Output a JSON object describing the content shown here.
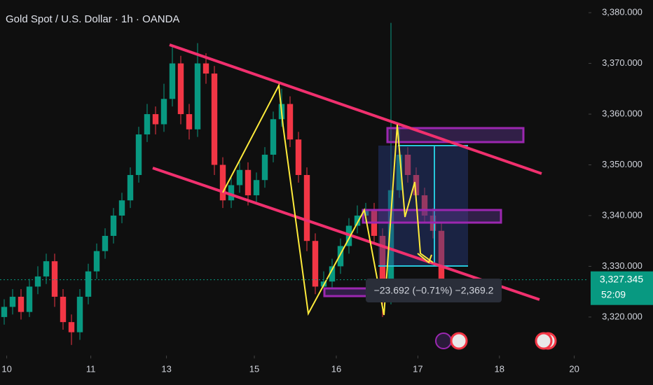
{
  "chart_data": {
    "type": "candlestick",
    "title": "Gold Spot / U.S. Dollar · 1h · OANDA",
    "up_color": "#089981",
    "down_color": "#f23645",
    "candles": [
      [
        3320,
        3323.5,
        3318.5,
        3322
      ],
      [
        3322,
        3325.5,
        3320.5,
        3324
      ],
      [
        3324,
        3325.5,
        3319.5,
        3321
      ],
      [
        3321,
        3327.5,
        3320,
        3326
      ],
      [
        3326,
        3330,
        3324.5,
        3328
      ],
      [
        3328,
        3332.5,
        3326.5,
        3331
      ],
      [
        3331,
        3332.5,
        3322,
        3324
      ],
      [
        3324,
        3325.5,
        3317.5,
        3319
      ],
      [
        3319,
        3320.5,
        3314.5,
        3317
      ],
      [
        3317,
        3325.5,
        3315.5,
        3324
      ],
      [
        3324,
        3330.5,
        3322.5,
        3329
      ],
      [
        3329,
        3334.5,
        3327.5,
        3333
      ],
      [
        3333,
        3337.5,
        3331.5,
        3336
      ],
      [
        3336,
        3341.5,
        3334.5,
        3340
      ],
      [
        3340,
        3344.5,
        3338.5,
        3343
      ],
      [
        3343,
        3349.5,
        3341.5,
        3348
      ],
      [
        3348,
        3357.5,
        3346.5,
        3356
      ],
      [
        3356,
        3362,
        3354.5,
        3360
      ],
      [
        3360,
        3361.5,
        3356,
        3358
      ],
      [
        3358,
        3366,
        3356.5,
        3363
      ],
      [
        3363,
        3373.5,
        3361.5,
        3370
      ],
      [
        3370,
        3371.5,
        3358,
        3360
      ],
      [
        3360,
        3362,
        3355,
        3357
      ],
      [
        3357,
        3374,
        3355.5,
        3370
      ],
      [
        3370,
        3372,
        3366,
        3368
      ],
      [
        3368,
        3369.5,
        3348,
        3350
      ],
      [
        3350,
        3351.5,
        3341.5,
        3343
      ],
      [
        3343,
        3347.5,
        3341.5,
        3346
      ],
      [
        3346,
        3350.5,
        3344.5,
        3349
      ],
      [
        3349,
        3350.5,
        3342,
        3344
      ],
      [
        3344,
        3348.5,
        3342.5,
        3347
      ],
      [
        3347,
        3353.5,
        3345.5,
        3352
      ],
      [
        3352,
        3360.5,
        3350.5,
        3359
      ],
      [
        3359,
        3365,
        3357.5,
        3362
      ],
      [
        3362,
        3363.5,
        3353.5,
        3355
      ],
      [
        3355,
        3356.5,
        3346.5,
        3348
      ],
      [
        3348,
        3349.5,
        3333,
        3335
      ],
      [
        3335,
        3336.5,
        3324.5,
        3326
      ],
      [
        3326,
        3329,
        3324.5,
        3327
      ],
      [
        3327,
        3331.5,
        3325.5,
        3330
      ],
      [
        3330,
        3335.5,
        3328.5,
        3334
      ],
      [
        3334,
        3339.5,
        3332.5,
        3338
      ],
      [
        3338,
        3342,
        3336.5,
        3340
      ],
      [
        3340,
        3342.5,
        3338.5,
        3341
      ],
      [
        3341,
        3342.5,
        3334.5,
        3336
      ],
      [
        3336,
        3337.5,
        3320,
        3324
      ],
      [
        3324,
        3378,
        3322.5,
        3345
      ],
      [
        3345,
        3358,
        3343.5,
        3352
      ],
      [
        3352,
        3353.5,
        3346.5,
        3348
      ],
      [
        3348,
        3349.5,
        3342.5,
        3344
      ],
      [
        3344,
        3345.5,
        3338.5,
        3340
      ],
      [
        3340,
        3341.5,
        3335.5,
        3337
      ],
      [
        3337,
        3338.5,
        3325.5,
        3327
      ]
    ],
    "xlim": [
      0,
      70
    ],
    "xticks": [
      {
        "value": 0.8,
        "label": "10"
      },
      {
        "value": 10.8,
        "label": "11"
      },
      {
        "value": 19.8,
        "label": "13"
      },
      {
        "value": 30.25,
        "label": "15"
      },
      {
        "value": 40,
        "label": "16"
      },
      {
        "value": 49.7,
        "label": "17"
      },
      {
        "value": 59.4,
        "label": "18"
      },
      {
        "value": 68.3,
        "label": "20"
      }
    ],
    "ylim": [
      3313.5,
      3382.5
    ],
    "yticks": [
      {
        "value": 3320,
        "label": "3,320.000"
      },
      {
        "value": 3330,
        "label": "3,330.000"
      },
      {
        "value": 3340,
        "label": "3,340.000"
      },
      {
        "value": 3350,
        "label": "3,350.000"
      },
      {
        "value": 3360,
        "label": "3,360.000"
      },
      {
        "value": 3370,
        "label": "3,370.000"
      },
      {
        "value": 3380,
        "label": "3,380.000"
      }
    ],
    "last_price": {
      "value": 3327.345,
      "label": "3,327.345"
    },
    "countdown": "52:09",
    "measure_label": "−23.692 (−0.71%) −2,369.2"
  }
}
